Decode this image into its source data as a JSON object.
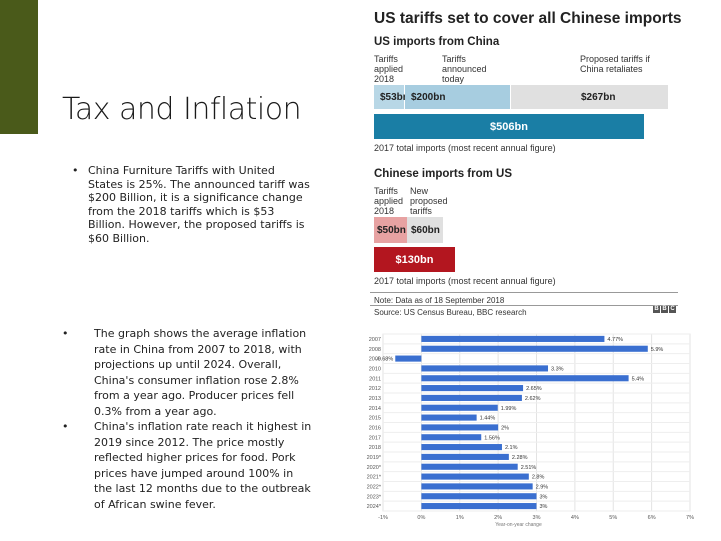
{
  "slide": {
    "title": "Tax and Inflation",
    "bullet1": "China Furniture Tariffs with United States is 25%. The announced tariff was $200 Billion, it is a significance change from the 2018 tariffs which is $53 Billion. However, the proposed tariffs is $60 Billion.",
    "bullet2": "The graph shows the average inflation rate in China from 2007 to 2018, with projections up until 2024. Overall, China's consumer inflation rose 2.8% from a year ago. Producer prices fell 0.3% from a year ago.",
    "bullet3": "China's inflation rate reach it highest in 2019 since 2012. The price mostly reflected higher prices for food. Pork prices have jumped around 100% in the last 12 months due to the outbreak of African swine fever.",
    "bullet_mark": "•",
    "accent_color": "#4a5a1a"
  },
  "infographic": {
    "title": "US tariffs set to cover all Chinese imports",
    "us_section": {
      "heading": "US imports from China",
      "labels": [
        "Tariffs applied 2018",
        "Tariffs announced today",
        "Proposed tariffs if China retaliates"
      ],
      "segments": [
        {
          "value": "$53bn",
          "color": "#b8d7e6"
        },
        {
          "value": "$200bn",
          "color": "#a7cde0"
        },
        {
          "value": "$267bn",
          "color": "#e0e0e0"
        }
      ],
      "total": {
        "value": "$506bn",
        "color": "#1a7ea5"
      },
      "footnote": "2017 total imports (most recent annual figure)"
    },
    "china_section": {
      "heading": "Chinese imports from US",
      "labels": [
        "Tariffs applied 2018",
        "New proposed tariffs"
      ],
      "segments": [
        {
          "value": "$50bn",
          "color": "#e7a2a2"
        },
        {
          "value": "$60bn",
          "color": "#e0e0e0"
        }
      ],
      "total": {
        "value": "$130bn",
        "color": "#b3161f"
      },
      "footnote": "2017 total imports (most recent annual figure)"
    },
    "note": "Note: Data as of 18 September 2018",
    "source": "Source: US Census Bureau, BBC research",
    "brand": [
      "B",
      "B",
      "C"
    ]
  },
  "chart_data": {
    "type": "bar",
    "orientation": "horizontal",
    "categories": [
      "2007",
      "2008",
      "2009",
      "2010",
      "2011",
      "2012",
      "2013",
      "2014",
      "2015",
      "2016",
      "2017",
      "2018",
      "2019*",
      "2020*",
      "2021*",
      "2022*",
      "2023*",
      "2024*"
    ],
    "values": [
      4.77,
      5.9,
      -0.68,
      3.3,
      5.4,
      2.65,
      2.62,
      1.99,
      1.44,
      2.0,
      1.56,
      2.1,
      2.28,
      2.51,
      2.8,
      2.9,
      3.0,
      3.0
    ],
    "value_labels": [
      "4.77%",
      "5.9%",
      "-0.68%",
      "3.3%",
      "5.4%",
      "2.65%",
      "2.62%",
      "1.99%",
      "1.44%",
      "2%",
      "1.56%",
      "2.1%",
      "2.28%",
      "2.51%",
      "2.8%",
      "2.9%",
      "3%",
      "3%"
    ],
    "xlim": [
      -1,
      7
    ],
    "xticks": [
      "-1%",
      "0%",
      "1%",
      "2%",
      "3%",
      "4%",
      "5%",
      "6%",
      "7%"
    ],
    "xlabel": "Year-on-year change",
    "bar_color": "#3a6fd0",
    "grid": true
  }
}
